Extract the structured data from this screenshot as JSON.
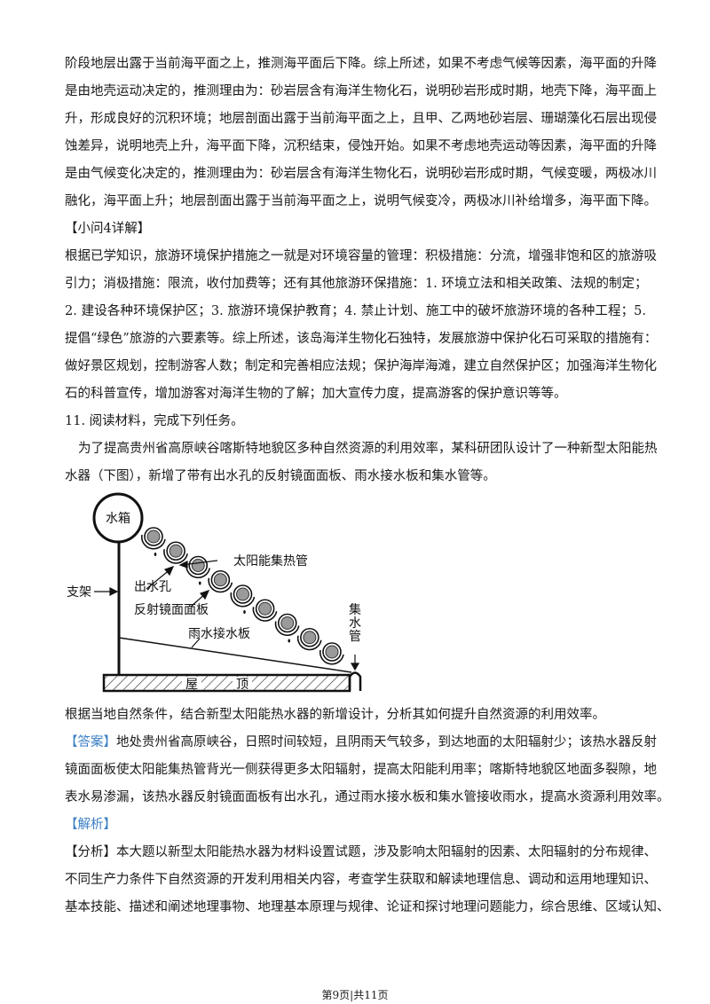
{
  "paragraph_top": [
    "阶段地层出露于当前海平面之上，推测海平面后下降。综上所述，如果不考虑气候等因素，海平面的升降",
    "是由地壳运动决定的，推测理由为：砂岩层含有海洋生物化石，说明砂岩形成时期，地壳下降，海平面上",
    "升，形成良好的沉积环境；地层剖面出露于当前海平面之上，且甲、乙两地砂岩层、珊瑚藻化石层出现侵",
    "蚀差异，说明地壳上升，海平面下降，沉积结束，侵蚀开始。如果不考虑地壳运动等因素，海平面的升降",
    "是由气候变化决定的，推测理由为：砂岩层含有海洋生物化石，说明砂岩形成时期，气候变暖，两极冰川",
    "融化，海平面上升；地层剖面出露于当前海平面之上，说明气候变冷，两极冰川补给增多，海平面下降。"
  ],
  "q4_heading": "【小问4详解】",
  "q4_body": [
    "根据已学知识，旅游环境保护措施之一就是对环境容量的管理：积极措施：分流，增强非饱和区的旅游吸",
    "引力；消极措施：限流，收付加费等；还有其他旅游环保措施：1. 环境立法和相关政策、法规的制定；",
    "2. 建设各种环境保护区；3. 旅游环境保护教育；4. 禁止计划、施工中的破坏旅游环境的各种工程；5.",
    "提倡“绿色”旅游的六要素等。综上所述，该岛海洋生物化石独特，发展旅游中保护化石可采取的措施有：",
    "做好景区规划，控制游客人数；制定和完善相应法规；保护海岸海滩，建立自然保护区；加强海洋生物化",
    "石的科普宣传，增加游客对海洋生物的了解；加大宣传力度，提高游客的保护意识等等。"
  ],
  "q11_title": "11. 阅读材料，完成下列任务。",
  "q11_material": [
    "为了提高贵州省高原峡谷喀斯特地貌区多种自然资源的利用效率，某科研团队设计了一种新型太阳能热",
    "水器（下图），新增了带有出水孔的反射镜面面板、雨水接水板和集水管等。"
  ],
  "diagram_labels": {
    "tank": "水箱",
    "collector_tube": "太阳能集热管",
    "outlet_hole": "出水孔",
    "support": "支架",
    "mirror_panel": "反射镜面面板",
    "rain_board": "雨水接水板",
    "collect_pipe": "集水管",
    "roof_1": "屋",
    "roof_2": "顶"
  },
  "q11_question": "根据当地自然条件，结合新型太阳能热水器的新增设计，分析其如何提升自然资源的利用效率。",
  "answer_label": "【答案】",
  "answer_body": [
    "地处贵州省高原峡谷，日照时间较短，且阴雨天气较多，到达地面的太阳辐射少；该热水器反射",
    "镜面面板使太阳能集热管背光一侧获得更多太阳辐射，提高太阳能利用率；喀斯特地貌区地面多裂隙，地",
    "表水易渗漏，该热水器反射镜面面板有出水孔，通过雨水接水板和集水管接收雨水，提高水资源利用效率。"
  ],
  "analysis_label": "【解析】",
  "analysis_body": [
    "【分析】本大题以新型太阳能热水器为材料设置试题，涉及影响太阳辐射的因素、太阳辐射的分布规律、",
    "不同生产力条件下自然资源的开发利用相关内容，考查学生获取和解读地理信息、调动和运用地理知识、",
    "基本技能、描述和阐述地理事物、地理基本原理与规律、论证和探讨地理问题能力，综合思维、区域认知、"
  ],
  "footer": "第9页|共11页",
  "colors": {
    "label_blue": "#3b7fc4"
  }
}
